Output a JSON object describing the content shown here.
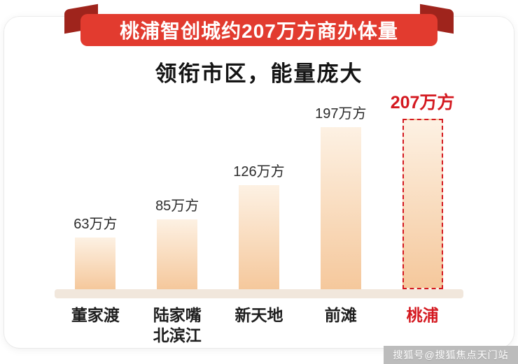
{
  "banner": {
    "title": "桃浦智创城约207万方商办体量"
  },
  "subtitle": "领衔市区，能量庞大",
  "watermark": "搜狐号@搜狐焦点天门站",
  "colors": {
    "ribbon_red": "#e23b2f",
    "ribbon_fold": "#9f241c",
    "highlight_red": "#d41920",
    "bar_top": "#fdf1e3",
    "bar_bottom": "#f5c89c",
    "baseline": "#f1e7dc"
  },
  "chart_data": {
    "type": "bar",
    "title": "桃浦智创城约207万方商办体量",
    "subtitle": "领衔市区，能量庞大",
    "categories": [
      "董家渡",
      "陆家嘴\n北滨江",
      "新天地",
      "前滩",
      "桃浦"
    ],
    "values": [
      63,
      85,
      126,
      197,
      207
    ],
    "value_labels": [
      "63万方",
      "85万方",
      "126万方",
      "197万方",
      "207万方"
    ],
    "unit": "万方",
    "highlight_index": 4,
    "ylim": [
      0,
      220
    ],
    "grid": false,
    "legend": "none"
  }
}
